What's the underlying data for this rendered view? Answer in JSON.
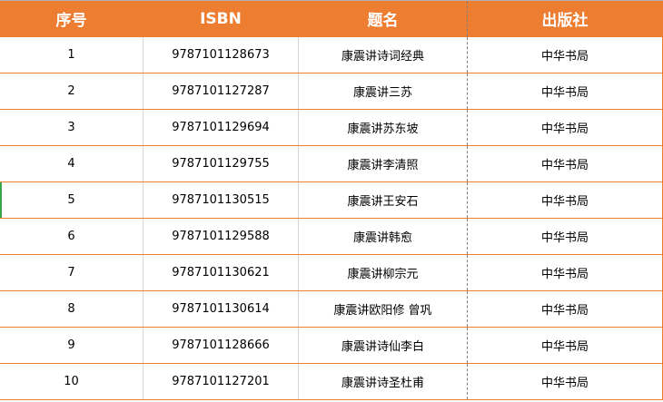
{
  "headers": [
    "序号",
    "ISBN",
    "题名",
    "出版社"
  ],
  "rows": [
    [
      "1",
      "9787101128673",
      "康震讲诗词经典",
      "中华书局"
    ],
    [
      "2",
      "9787101127287",
      "康震讲三苏",
      "中华书局"
    ],
    [
      "3",
      "9787101129694",
      "康震讲苏东坡",
      "中华书局"
    ],
    [
      "4",
      "9787101129755",
      "康震讲李清照",
      "中华书局"
    ],
    [
      "5",
      "9787101130515",
      "康震讲王安石",
      "中华书局"
    ],
    [
      "6",
      "9787101129588",
      "康震讲韩愈",
      "中华书局"
    ],
    [
      "7",
      "9787101130621",
      "康震讲柳宗元",
      "中华书局"
    ],
    [
      "8",
      "9787101130614",
      "康震讲欧阳修 曾巩",
      "中华书局"
    ],
    [
      "9",
      "9787101128666",
      "康震讲诗仙李白",
      "中华书局"
    ],
    [
      "10",
      "9787101127201",
      "康震讲诗圣杜甫",
      "中华书局"
    ]
  ],
  "colors": {
    "header_bg": "#ED7D31",
    "row_border": "#ED7D31",
    "selected_row_marker": "#3AA64A"
  }
}
